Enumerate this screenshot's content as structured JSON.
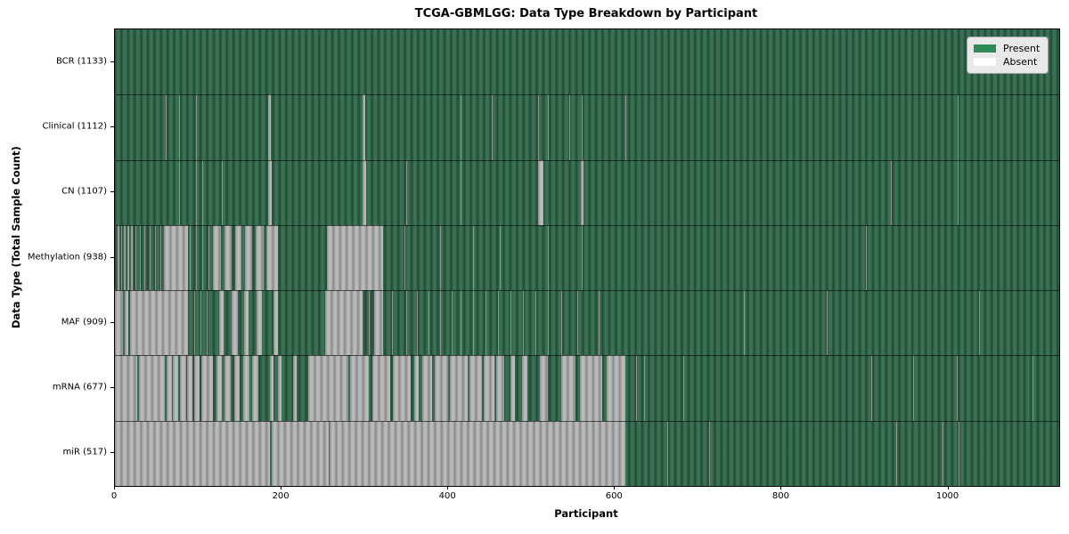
{
  "title": "TCGA-GBMLGG: Data Type Breakdown by Participant",
  "xlabel": "Participant",
  "ylabel": "Data Type (Total Sample Count)",
  "legend": [
    {
      "label": "Present",
      "color": "#2e8b57"
    },
    {
      "label": "Absent",
      "color": "#ffffff"
    }
  ],
  "colors": {
    "present": "#2e8b57",
    "absent": "#ffffff",
    "present_stripe_dark": "#224a36",
    "present_stripe_light": "#3a7254",
    "absent_stripe_dark": "#898989",
    "absent_stripe_light": "#bababa",
    "plot_border": "#000000",
    "row_separator": "rgba(0,0,0,0.6)",
    "legend_bg": "#e9e9e9",
    "legend_border": "#a0a0a0",
    "text": "#000000"
  },
  "chart_data": {
    "type": "heatmap",
    "title": "TCGA-GBMLGG: Data Type Breakdown by Participant",
    "xlabel": "Participant",
    "ylabel": "Data Type (Total Sample Count)",
    "xlim": [
      0,
      1133
    ],
    "x_ticks": [
      0,
      200,
      400,
      600,
      800,
      1000
    ],
    "grid": false,
    "legend_position": "upper right",
    "states": {
      "present": "green",
      "absent": "white"
    },
    "rows": [
      {
        "label": "BCR (1133)",
        "name": "BCR",
        "total": 1133,
        "absent_runs": []
      },
      {
        "label": "Clinical (1112)",
        "name": "Clinical",
        "total": 1112,
        "absent_runs": [
          [
            61,
            62
          ],
          [
            77,
            78
          ],
          [
            97,
            98
          ],
          [
            184,
            187
          ],
          [
            297,
            300
          ],
          [
            415,
            416
          ],
          [
            452,
            453
          ],
          [
            508,
            509
          ],
          [
            520,
            521
          ],
          [
            545,
            546
          ],
          [
            560,
            561
          ],
          [
            612,
            614
          ],
          [
            1011,
            1012
          ]
        ]
      },
      {
        "label": "CN (1107)",
        "name": "CN",
        "total": 1107,
        "absent_runs": [
          [
            77,
            78
          ],
          [
            97,
            98
          ],
          [
            105,
            106
          ],
          [
            128,
            129
          ],
          [
            184,
            188
          ],
          [
            297,
            301
          ],
          [
            349,
            350
          ],
          [
            415,
            416
          ],
          [
            508,
            514
          ],
          [
            559,
            562
          ],
          [
            931,
            932
          ],
          [
            1011,
            1012
          ]
        ]
      },
      {
        "label": "Methylation (938)",
        "name": "Methylation",
        "total": 938,
        "absent_runs": [
          [
            3,
            5
          ],
          [
            7,
            9
          ],
          [
            11,
            13
          ],
          [
            15,
            17
          ],
          [
            19,
            21
          ],
          [
            25,
            26
          ],
          [
            30,
            31
          ],
          [
            35,
            36
          ],
          [
            42,
            43
          ],
          [
            48,
            49
          ],
          [
            55,
            56
          ],
          [
            59,
            88
          ],
          [
            90,
            91
          ],
          [
            97,
            98
          ],
          [
            105,
            106
          ],
          [
            112,
            113
          ],
          [
            118,
            127
          ],
          [
            131,
            140
          ],
          [
            144,
            152
          ],
          [
            156,
            165
          ],
          [
            169,
            178
          ],
          [
            182,
            196
          ],
          [
            254,
            322
          ],
          [
            347,
            348
          ],
          [
            390,
            391
          ],
          [
            430,
            431
          ],
          [
            462,
            463
          ],
          [
            520,
            521
          ],
          [
            560,
            561
          ],
          [
            901,
            902
          ]
        ]
      },
      {
        "label": "MAF (909)",
        "name": "MAF",
        "total": 909,
        "absent_runs": [
          [
            0,
            10
          ],
          [
            12,
            16
          ],
          [
            18,
            88
          ],
          [
            95,
            96
          ],
          [
            103,
            104
          ],
          [
            110,
            111
          ],
          [
            125,
            130
          ],
          [
            140,
            148
          ],
          [
            155,
            160
          ],
          [
            170,
            176
          ],
          [
            190,
            196
          ],
          [
            252,
            297
          ],
          [
            305,
            306
          ],
          [
            311,
            322
          ],
          [
            332,
            333
          ],
          [
            349,
            350
          ],
          [
            362,
            363
          ],
          [
            376,
            377
          ],
          [
            390,
            391
          ],
          [
            404,
            405
          ],
          [
            415,
            416
          ],
          [
            430,
            431
          ],
          [
            445,
            446
          ],
          [
            460,
            461
          ],
          [
            475,
            476
          ],
          [
            490,
            491
          ],
          [
            505,
            506
          ],
          [
            520,
            521
          ],
          [
            535,
            536
          ],
          [
            555,
            556
          ],
          [
            580,
            581
          ],
          [
            755,
            756
          ],
          [
            854,
            855
          ],
          [
            1037,
            1038
          ]
        ]
      },
      {
        "label": "mRNA (677)",
        "name": "mRNA",
        "total": 677,
        "absent_runs": [
          [
            0,
            27
          ],
          [
            29,
            60
          ],
          [
            62,
            68
          ],
          [
            70,
            76
          ],
          [
            78,
            85
          ],
          [
            87,
            93
          ],
          [
            95,
            102
          ],
          [
            104,
            118
          ],
          [
            122,
            128
          ],
          [
            132,
            139
          ],
          [
            143,
            150
          ],
          [
            154,
            161
          ],
          [
            165,
            172
          ],
          [
            186,
            190
          ],
          [
            196,
            200
          ],
          [
            214,
            218
          ],
          [
            232,
            280
          ],
          [
            282,
            305
          ],
          [
            309,
            330
          ],
          [
            334,
            355
          ],
          [
            359,
            365
          ],
          [
            369,
            380
          ],
          [
            384,
            400
          ],
          [
            402,
            423
          ],
          [
            425,
            440
          ],
          [
            442,
            455
          ],
          [
            457,
            467
          ],
          [
            475,
            480
          ],
          [
            488,
            495
          ],
          [
            510,
            520
          ],
          [
            535,
            553
          ],
          [
            558,
            585
          ],
          [
            590,
            612
          ],
          [
            625,
            626
          ],
          [
            635,
            636
          ],
          [
            682,
            683
          ],
          [
            907,
            908
          ],
          [
            958,
            959
          ],
          [
            1010,
            1011
          ],
          [
            1101,
            1102
          ]
        ]
      },
      {
        "label": "miR (517)",
        "name": "miR",
        "total": 517,
        "absent_runs": [
          [
            0,
            186
          ],
          [
            188,
            257
          ],
          [
            258,
            612
          ],
          [
            663,
            664
          ],
          [
            713,
            714
          ],
          [
            937,
            938
          ],
          [
            993,
            994
          ],
          [
            1012,
            1013
          ]
        ]
      }
    ]
  }
}
